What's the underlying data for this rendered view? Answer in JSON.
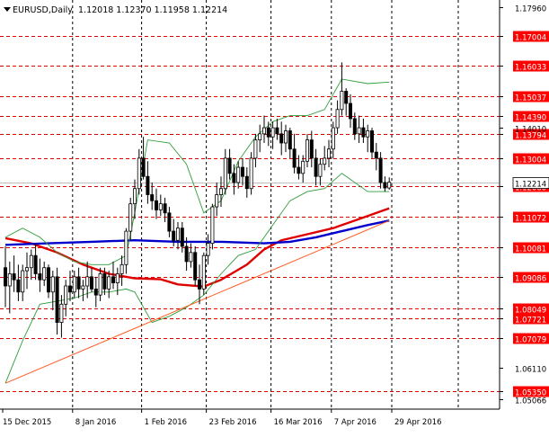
{
  "header": {
    "symbol": "EURUSD,Daily",
    "ohlc": "1.12018 1.12370 1.11958 1.12214"
  },
  "colors": {
    "background": "#ffffff",
    "candle": "#000000",
    "level_line": "#e00000",
    "level_label_bg": "#ff0000",
    "level_label_text": "#ffffff",
    "grid": "#000000",
    "ma_red": "#e00000",
    "ma_blue": "#0000cc",
    "bollinger": "#2e9e3a",
    "trendline": "#ff5a1f",
    "current_price_line": "#c0c0c0"
  },
  "chart_data": {
    "type": "candlestick",
    "title": "EURUSD,Daily",
    "y_axis": {
      "ticks": [
        "1.17960",
        "1.14010",
        "1.06110",
        "1.05066"
      ],
      "ylim": [
        1.0475,
        1.182
      ]
    },
    "x_axis": {
      "tick_labels": [
        "15 Dec 2015",
        "8 Jan 2016",
        "1 Feb 2016",
        "23 Feb 2016",
        "16 Mar 2016",
        "7 Apr 2016",
        "29 Apr 2016"
      ]
    },
    "grid": true,
    "levels": [
      "1.17004",
      "1.16033",
      "1.15037",
      "1.14390",
      "1.13794",
      "1.13004",
      "1.12080",
      "1.11072",
      "1.10081",
      "1.09086",
      "1.08049",
      "1.07721",
      "1.07079",
      "1.05350"
    ],
    "current_price": "1.12214",
    "candles": [
      [
        1.094,
        1.101,
        1.081,
        1.088
      ],
      [
        1.088,
        1.096,
        1.079,
        1.092
      ],
      [
        1.092,
        1.098,
        1.086,
        1.09
      ],
      [
        1.09,
        1.095,
        1.083,
        1.086
      ],
      [
        1.086,
        1.095,
        1.083,
        1.093
      ],
      [
        1.093,
        1.099,
        1.087,
        1.094
      ],
      [
        1.094,
        1.1,
        1.09,
        1.098
      ],
      [
        1.098,
        1.102,
        1.09,
        1.092
      ],
      [
        1.092,
        1.097,
        1.086,
        1.09
      ],
      [
        1.09,
        1.096,
        1.088,
        1.094
      ],
      [
        1.094,
        1.095,
        1.084,
        1.086
      ],
      [
        1.086,
        1.093,
        1.08,
        1.091
      ],
      [
        1.091,
        1.094,
        1.072,
        1.076
      ],
      [
        1.076,
        1.085,
        1.071,
        1.082
      ],
      [
        1.082,
        1.09,
        1.078,
        1.088
      ],
      [
        1.088,
        1.093,
        1.083,
        1.086
      ],
      [
        1.086,
        1.093,
        1.084,
        1.091
      ],
      [
        1.091,
        1.094,
        1.084,
        1.087
      ],
      [
        1.087,
        1.09,
        1.083,
        1.088
      ],
      [
        1.088,
        1.096,
        1.084,
        1.091
      ],
      [
        1.091,
        1.094,
        1.086,
        1.087
      ],
      [
        1.087,
        1.091,
        1.081,
        1.085
      ],
      [
        1.085,
        1.094,
        1.083,
        1.092
      ],
      [
        1.092,
        1.094,
        1.085,
        1.087
      ],
      [
        1.087,
        1.093,
        1.084,
        1.091
      ],
      [
        1.091,
        1.096,
        1.087,
        1.089
      ],
      [
        1.089,
        1.094,
        1.085,
        1.092
      ],
      [
        1.092,
        1.098,
        1.088,
        1.095
      ],
      [
        1.095,
        1.107,
        1.092,
        1.106
      ],
      [
        1.106,
        1.117,
        1.103,
        1.115
      ],
      [
        1.115,
        1.123,
        1.11,
        1.12
      ],
      [
        1.12,
        1.133,
        1.118,
        1.13
      ],
      [
        1.13,
        1.137,
        1.123,
        1.124
      ],
      [
        1.124,
        1.129,
        1.115,
        1.118
      ],
      [
        1.118,
        1.122,
        1.113,
        1.116
      ],
      [
        1.116,
        1.12,
        1.11,
        1.113
      ],
      [
        1.113,
        1.118,
        1.111,
        1.115
      ],
      [
        1.115,
        1.117,
        1.109,
        1.112
      ],
      [
        1.112,
        1.114,
        1.104,
        1.106
      ],
      [
        1.106,
        1.11,
        1.101,
        1.103
      ],
      [
        1.103,
        1.109,
        1.1,
        1.107
      ],
      [
        1.107,
        1.109,
        1.099,
        1.101
      ],
      [
        1.101,
        1.104,
        1.093,
        1.096
      ],
      [
        1.096,
        1.102,
        1.094,
        1.099
      ],
      [
        1.099,
        1.101,
        1.088,
        1.09
      ],
      [
        1.09,
        1.095,
        1.082,
        1.087
      ],
      [
        1.087,
        1.099,
        1.085,
        1.098
      ],
      [
        1.098,
        1.105,
        1.095,
        1.102
      ],
      [
        1.102,
        1.115,
        1.1,
        1.114
      ],
      [
        1.114,
        1.122,
        1.111,
        1.118
      ],
      [
        1.118,
        1.124,
        1.114,
        1.12
      ],
      [
        1.12,
        1.133,
        1.118,
        1.13
      ],
      [
        1.13,
        1.133,
        1.123,
        1.125
      ],
      [
        1.125,
        1.128,
        1.118,
        1.122
      ],
      [
        1.122,
        1.129,
        1.12,
        1.127
      ],
      [
        1.127,
        1.13,
        1.121,
        1.124
      ],
      [
        1.124,
        1.127,
        1.117,
        1.12
      ],
      [
        1.12,
        1.132,
        1.118,
        1.13
      ],
      [
        1.13,
        1.138,
        1.127,
        1.136
      ],
      [
        1.136,
        1.141,
        1.132,
        1.138
      ],
      [
        1.138,
        1.144,
        1.135,
        1.14
      ],
      [
        1.14,
        1.142,
        1.134,
        1.137
      ],
      [
        1.137,
        1.142,
        1.133,
        1.14
      ],
      [
        1.14,
        1.143,
        1.136,
        1.138
      ],
      [
        1.138,
        1.142,
        1.131,
        1.135
      ],
      [
        1.135,
        1.141,
        1.132,
        1.139
      ],
      [
        1.139,
        1.14,
        1.13,
        1.133
      ],
      [
        1.133,
        1.138,
        1.125,
        1.127
      ],
      [
        1.127,
        1.131,
        1.123,
        1.125
      ],
      [
        1.125,
        1.131,
        1.122,
        1.129
      ],
      [
        1.129,
        1.138,
        1.127,
        1.136
      ],
      [
        1.136,
        1.139,
        1.127,
        1.13
      ],
      [
        1.13,
        1.133,
        1.121,
        1.124
      ],
      [
        1.124,
        1.13,
        1.121,
        1.128
      ],
      [
        1.128,
        1.134,
        1.126,
        1.13
      ],
      [
        1.13,
        1.136,
        1.127,
        1.133
      ],
      [
        1.133,
        1.142,
        1.13,
        1.14
      ],
      [
        1.14,
        1.149,
        1.138,
        1.146
      ],
      [
        1.146,
        1.1615,
        1.144,
        1.152
      ],
      [
        1.152,
        1.153,
        1.144,
        1.148
      ],
      [
        1.148,
        1.151,
        1.14,
        1.143
      ],
      [
        1.143,
        1.145,
        1.136,
        1.138
      ],
      [
        1.138,
        1.144,
        1.135,
        1.14
      ],
      [
        1.14,
        1.143,
        1.135,
        1.137
      ],
      [
        1.137,
        1.141,
        1.132,
        1.139
      ],
      [
        1.139,
        1.14,
        1.13,
        1.132
      ],
      [
        1.132,
        1.135,
        1.126,
        1.13
      ],
      [
        1.13,
        1.132,
        1.12,
        1.122
      ],
      [
        1.122,
        1.124,
        1.119,
        1.1202
      ],
      [
        1.1202,
        1.1237,
        1.1196,
        1.1221
      ]
    ],
    "series": [
      {
        "type": "line",
        "color": "#e00000",
        "values": [
          [
            0,
            1.1037
          ],
          [
            6,
            1.102
          ],
          [
            12,
            1.099
          ],
          [
            18,
            1.095
          ],
          [
            24,
            1.092
          ],
          [
            30,
            1.0905
          ],
          [
            36,
            1.0902
          ],
          [
            40,
            1.0885
          ],
          [
            46,
            1.0878
          ],
          [
            50,
            1.09
          ],
          [
            56,
            1.095
          ],
          [
            60,
            1.1
          ],
          [
            64,
            1.103
          ],
          [
            70,
            1.105
          ],
          [
            76,
            1.107
          ],
          [
            82,
            1.11
          ],
          [
            88,
            1.113
          ],
          [
            89,
            1.1135
          ]
        ]
      },
      {
        "type": "line",
        "color": "#0000cc",
        "values": [
          [
            0,
            1.1015
          ],
          [
            10,
            1.102
          ],
          [
            20,
            1.1025
          ],
          [
            30,
            1.103
          ],
          [
            40,
            1.1025
          ],
          [
            50,
            1.1025
          ],
          [
            60,
            1.102
          ],
          [
            66,
            1.1025
          ],
          [
            72,
            1.104
          ],
          [
            78,
            1.106
          ],
          [
            84,
            1.108
          ],
          [
            89,
            1.1095
          ]
        ]
      },
      {
        "type": "line",
        "color": "#2e9e3a",
        "values": [
          [
            0,
            1.104
          ],
          [
            4,
            1.107
          ],
          [
            8,
            1.104
          ],
          [
            12,
            1.099
          ],
          [
            16,
            1.096
          ],
          [
            20,
            1.095
          ],
          [
            24,
            1.095
          ],
          [
            28,
            1.098
          ],
          [
            30,
            1.112
          ],
          [
            33,
            1.136
          ],
          [
            38,
            1.135
          ],
          [
            42,
            1.128
          ],
          [
            46,
            1.112
          ],
          [
            50,
            1.116
          ],
          [
            54,
            1.129
          ],
          [
            58,
            1.137
          ],
          [
            62,
            1.142
          ],
          [
            66,
            1.144
          ],
          [
            70,
            1.144
          ],
          [
            74,
            1.146
          ],
          [
            78,
            1.156
          ],
          [
            84,
            1.1545
          ],
          [
            89,
            1.155
          ]
        ]
      },
      {
        "type": "line",
        "color": "#2e9e3a",
        "values": [
          [
            0,
            1.056
          ],
          [
            4,
            1.07
          ],
          [
            8,
            1.082
          ],
          [
            12,
            1.083
          ],
          [
            16,
            1.084
          ],
          [
            20,
            1.086
          ],
          [
            24,
            1.086
          ],
          [
            28,
            1.087
          ],
          [
            30,
            1.086
          ],
          [
            34,
            1.076
          ],
          [
            38,
            1.078
          ],
          [
            42,
            1.081
          ],
          [
            46,
            1.085
          ],
          [
            50,
            1.092
          ],
          [
            54,
            1.098
          ],
          [
            58,
            1.1
          ],
          [
            62,
            1.108
          ],
          [
            66,
            1.116
          ],
          [
            70,
            1.119
          ],
          [
            74,
            1.12
          ],
          [
            78,
            1.125
          ],
          [
            84,
            1.119
          ],
          [
            89,
            1.119
          ]
        ]
      },
      {
        "type": "line",
        "color": "#ff5a1f",
        "values": [
          [
            0,
            1.056
          ],
          [
            89,
            1.1095
          ]
        ]
      }
    ]
  }
}
